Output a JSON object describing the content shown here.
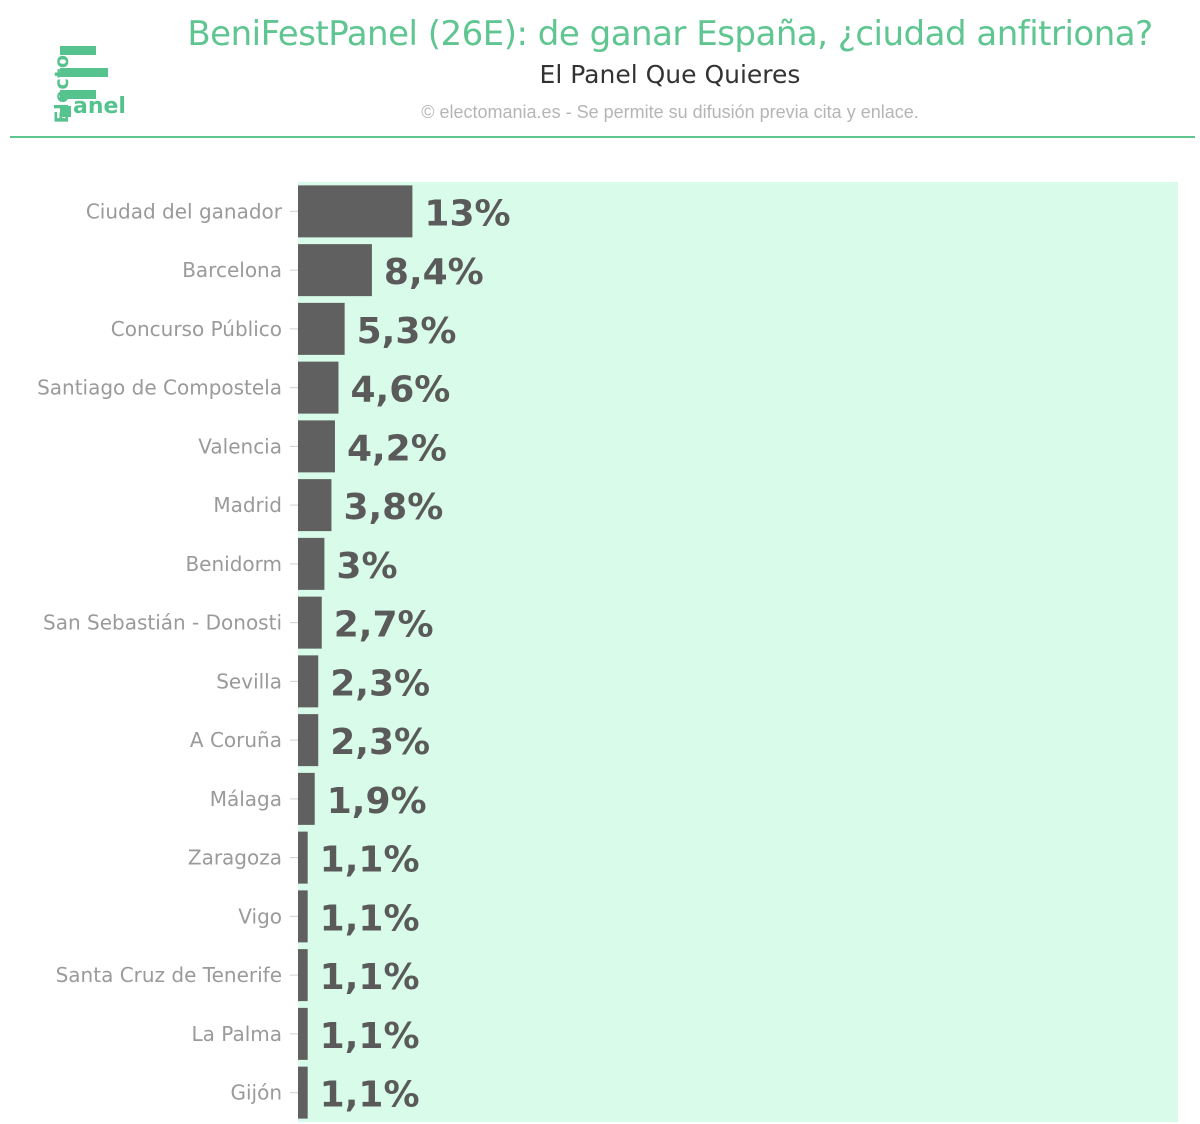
{
  "header": {
    "title": "BeniFestPanel (26E): de ganar España, ¿ciudad anfitriona?",
    "subtitle": "El Panel Que Quieres",
    "credit": "© electomania.es - Se permite su difusión previa cita y enlace."
  },
  "logo": {
    "word_vertical": "Electo",
    "word_horizontal": "anel"
  },
  "colors": {
    "brand": "#5fc591",
    "bar": "#606060",
    "plot_bg": "#d9fcea",
    "label": "#9a9a9a",
    "value": "#5a5a5a"
  },
  "chart_data": {
    "type": "bar",
    "orientation": "horizontal",
    "categories": [
      "Ciudad del ganador",
      "Barcelona",
      "Concurso Público",
      "Santiago de Compostela",
      "Valencia",
      "Madrid",
      "Benidorm",
      "San Sebastián - Donosti",
      "Sevilla",
      "A Coruña",
      "Málaga",
      "Zaragoza",
      "Vigo",
      "Santa Cruz de Tenerife",
      "La Palma",
      "Gijón"
    ],
    "values": [
      13,
      8.4,
      5.3,
      4.6,
      4.2,
      3.8,
      3,
      2.7,
      2.3,
      2.3,
      1.9,
      1.1,
      1.1,
      1.1,
      1.1,
      1.1
    ],
    "value_labels": [
      "13%",
      "8,4%",
      "5,3%",
      "4,6%",
      "4,2%",
      "3,8%",
      "3%",
      "2,7%",
      "2,3%",
      "2,3%",
      "1,9%",
      "1,1%",
      "1,1%",
      "1,1%",
      "1,1%",
      "1,1%"
    ],
    "xlim": [
      0,
      100
    ],
    "grid": false,
    "legend": "none"
  }
}
